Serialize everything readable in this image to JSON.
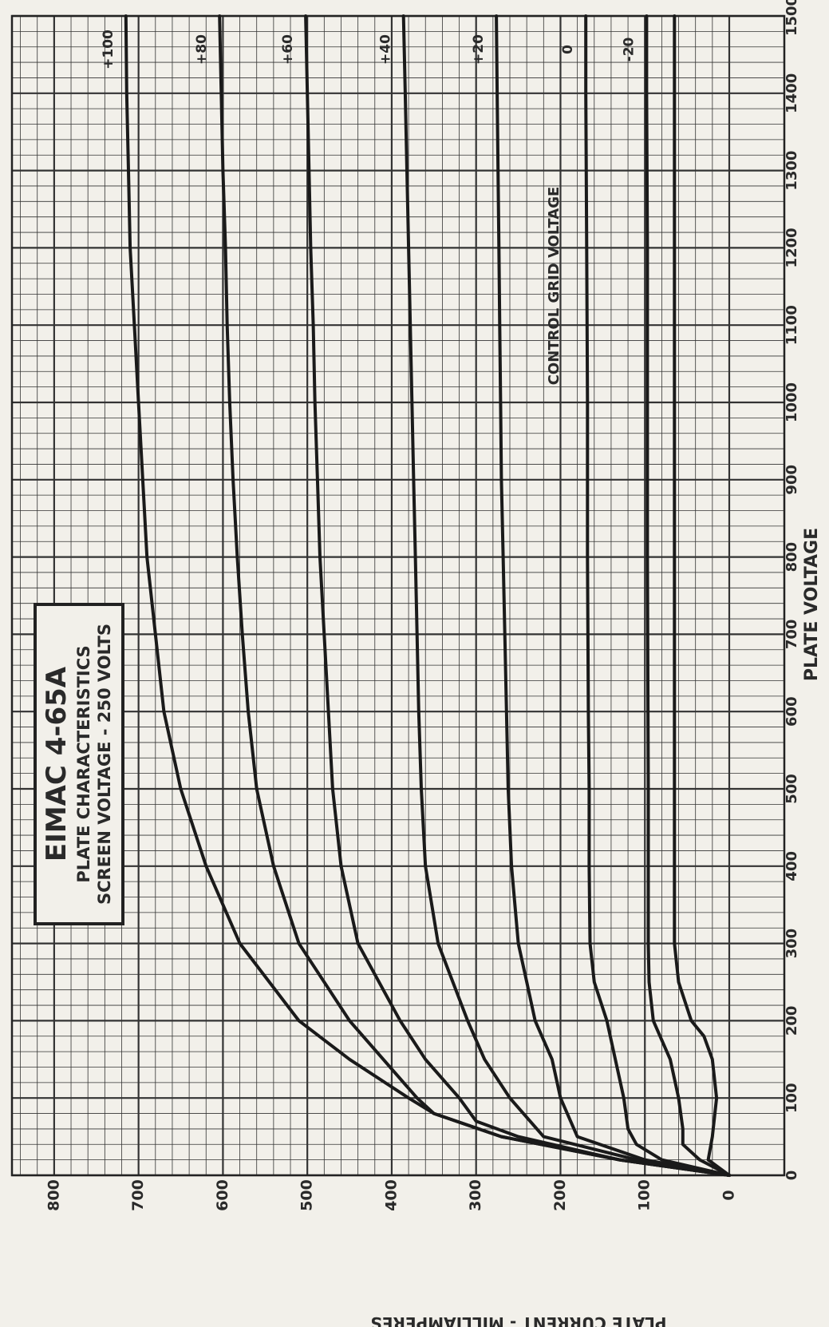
{
  "chart_data": {
    "type": "line",
    "title": "EIMAC 4-65A",
    "subtitle_1": "PLATE CHARACTERISTICS",
    "subtitle_2": "SCREEN VOLTAGE - 250 VOLTS",
    "xlabel": "PLATE VOLTAGE",
    "ylabel": "PLATE CURRENT - MILLIAMPERES",
    "family_label": "CONTROL GRID VOLTAGE",
    "xlim": [
      0,
      1500
    ],
    "ylim": [
      0,
      850
    ],
    "x_ticks": [
      "0",
      "100",
      "200",
      "300",
      "400",
      "500",
      "600",
      "700",
      "800",
      "900",
      "1000",
      "1100",
      "1200",
      "1300",
      "1400",
      "1500"
    ],
    "y_ticks": [
      "0",
      "100",
      "200",
      "300",
      "400",
      "500",
      "600",
      "700",
      "800"
    ],
    "grid": true,
    "legend": "labels at right end of each curve",
    "series": [
      {
        "name": "+100",
        "x": [
          0,
          20,
          50,
          80,
          100,
          150,
          200,
          300,
          400,
          500,
          600,
          700,
          800,
          900,
          1000,
          1100,
          1200,
          1300,
          1400,
          1500
        ],
        "y": [
          0,
          130,
          270,
          350,
          380,
          450,
          510,
          580,
          620,
          650,
          670,
          680,
          690,
          695,
          700,
          705,
          710,
          712,
          714,
          715
        ]
      },
      {
        "name": "+80",
        "x": [
          0,
          20,
          50,
          80,
          100,
          150,
          200,
          300,
          400,
          500,
          600,
          700,
          800,
          900,
          1000,
          1100,
          1200,
          1300,
          1400,
          1500
        ],
        "y": [
          0,
          130,
          270,
          350,
          370,
          410,
          450,
          510,
          540,
          560,
          570,
          577,
          583,
          588,
          592,
          595,
          597,
          600,
          602,
          604
        ]
      },
      {
        "name": "+60",
        "x": [
          0,
          20,
          50,
          70,
          100,
          150,
          200,
          300,
          400,
          500,
          600,
          700,
          800,
          900,
          1000,
          1100,
          1200,
          1300,
          1400,
          1500
        ],
        "y": [
          0,
          130,
          250,
          300,
          320,
          360,
          390,
          440,
          460,
          470,
          475,
          480,
          485,
          488,
          491,
          493,
          496,
          498,
          500,
          502
        ]
      },
      {
        "name": "+40",
        "x": [
          0,
          20,
          50,
          100,
          150,
          200,
          300,
          400,
          500,
          600,
          700,
          800,
          900,
          1000,
          1100,
          1200,
          1300,
          1400,
          1500
        ],
        "y": [
          0,
          110,
          220,
          260,
          290,
          310,
          345,
          360,
          365,
          368,
          370,
          372,
          374,
          376,
          378,
          380,
          382,
          384,
          386
        ]
      },
      {
        "name": "+20",
        "x": [
          0,
          20,
          50,
          100,
          150,
          200,
          250,
          300,
          400,
          500,
          600,
          700,
          800,
          900,
          1000,
          1100,
          1200,
          1300,
          1400,
          1500
        ],
        "y": [
          0,
          100,
          180,
          200,
          210,
          230,
          240,
          250,
          258,
          262,
          264,
          266,
          268,
          270,
          271,
          272,
          273,
          274,
          275,
          276
        ]
      },
      {
        "name": "0",
        "x": [
          0,
          20,
          40,
          60,
          100,
          150,
          200,
          250,
          300,
          400,
          500,
          600,
          800,
          1000,
          1200,
          1400,
          1500
        ],
        "y": [
          0,
          80,
          110,
          120,
          125,
          135,
          145,
          160,
          165,
          166,
          166,
          167,
          168,
          168,
          169,
          170,
          170
        ]
      },
      {
        "name": "-20",
        "x": [
          0,
          20,
          40,
          60,
          100,
          150,
          200,
          250,
          300,
          400,
          500,
          800,
          1000,
          1200,
          1400,
          1500
        ],
        "y": [
          0,
          35,
          55,
          55,
          60,
          70,
          90,
          95,
          96,
          96,
          96,
          97,
          97,
          97,
          98,
          98
        ]
      }
    ],
    "extra_curves": [
      {
        "x": [
          0,
          20,
          50,
          100,
          150,
          180,
          200,
          250,
          300,
          1500
        ],
        "y": [
          0,
          25,
          20,
          15,
          20,
          30,
          45,
          60,
          65,
          65
        ]
      }
    ]
  }
}
